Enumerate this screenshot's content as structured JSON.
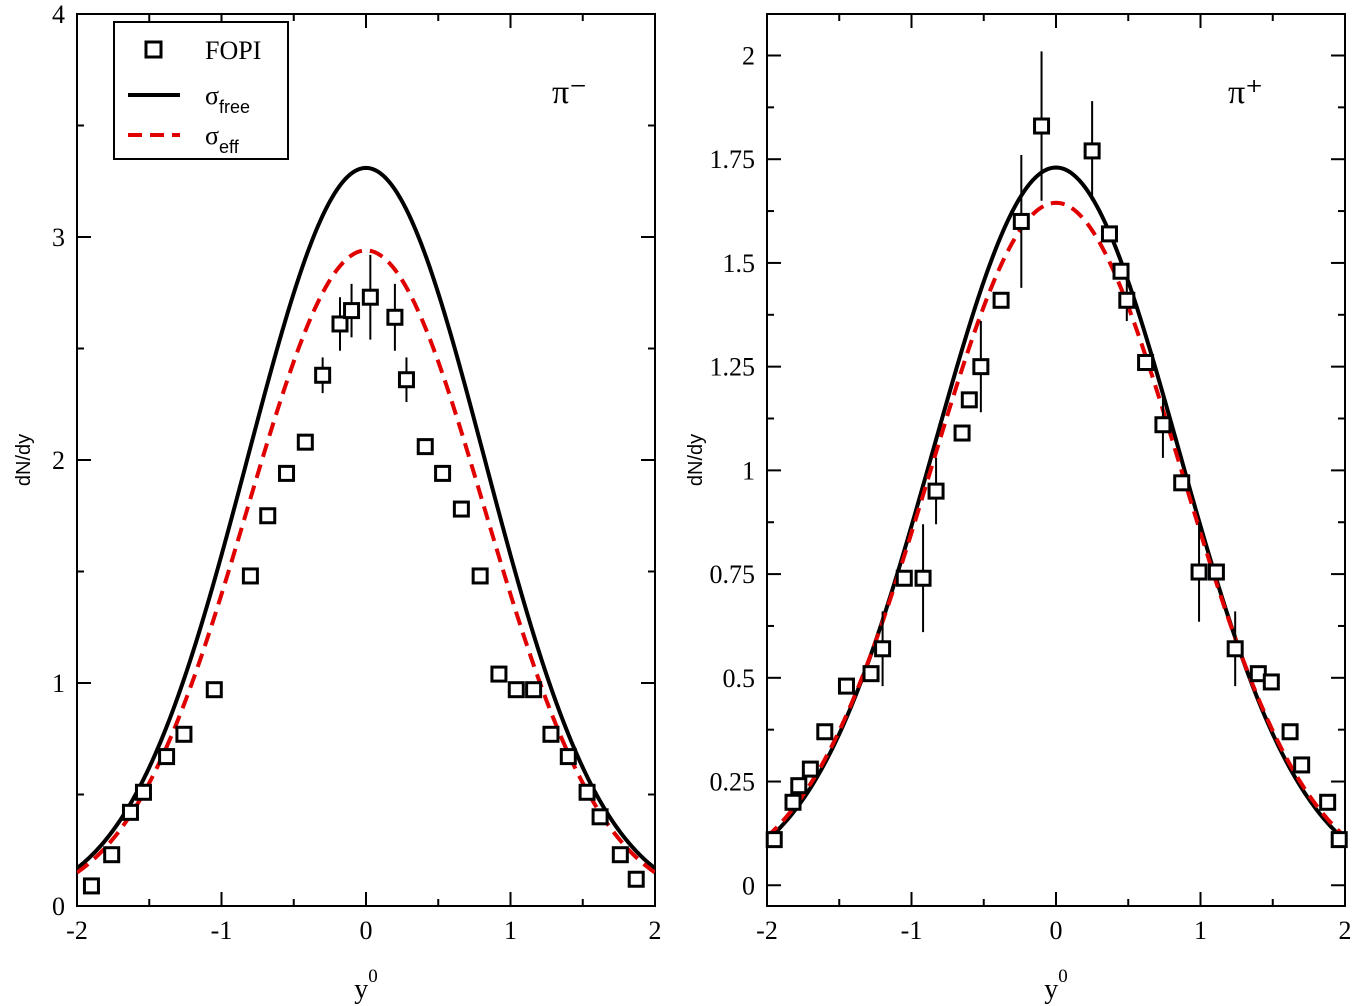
{
  "chart_data": [
    {
      "type": "scatter",
      "panel": "left",
      "label": "π⁻",
      "xlabel": "y",
      "xlabel_sup": "0",
      "ylabel": "dN/dy",
      "xlim": [
        -2,
        2
      ],
      "ylim": [
        0,
        4
      ],
      "xticks": [
        -2,
        -1,
        0,
        1,
        2
      ],
      "xtick_labels": [
        "-2",
        "-1",
        "0",
        "1",
        "2"
      ],
      "yticks": [
        0,
        1,
        2,
        3,
        4
      ],
      "ytick_labels": [
        "0",
        "1",
        "2",
        "3",
        "4"
      ],
      "grid": false,
      "legend": {
        "position": "top-left",
        "entries": [
          {
            "label": "FOPI",
            "sub": "",
            "marker": "square"
          },
          {
            "label": "σ",
            "sub": "free",
            "line": "solid",
            "color": "#000000"
          },
          {
            "label": "σ",
            "sub": "eff",
            "line": "dashed",
            "color": "#e00000"
          }
        ]
      },
      "curves": [
        {
          "name": "σfree",
          "style": "solid",
          "color": "#000000",
          "amplitude": 3.31,
          "width": 0.82,
          "x_range": [
            -2,
            2
          ]
        },
        {
          "name": "σeff",
          "style": "dashed",
          "color": "#e00000",
          "amplitude": 2.94,
          "width": 0.82,
          "x_range": [
            -2,
            2
          ]
        }
      ],
      "series": [
        {
          "name": "FOPI",
          "marker": "square",
          "points": [
            {
              "x": -1.9,
              "y": 0.09
            },
            {
              "x": -1.76,
              "y": 0.23
            },
            {
              "x": -1.63,
              "y": 0.42
            },
            {
              "x": -1.54,
              "y": 0.51
            },
            {
              "x": -1.38,
              "y": 0.67
            },
            {
              "x": -1.26,
              "y": 0.77
            },
            {
              "x": -1.05,
              "y": 0.97
            },
            {
              "x": -0.8,
              "y": 1.48
            },
            {
              "x": -0.68,
              "y": 1.75
            },
            {
              "x": -0.55,
              "y": 1.94
            },
            {
              "x": -0.42,
              "y": 2.08
            },
            {
              "x": -0.3,
              "y": 2.38,
              "err": 0.08
            },
            {
              "x": -0.18,
              "y": 2.61,
              "err": 0.12
            },
            {
              "x": -0.1,
              "y": 2.67,
              "err": 0.12
            },
            {
              "x": 0.03,
              "y": 2.73,
              "err": 0.19
            },
            {
              "x": 0.2,
              "y": 2.64,
              "err": 0.15
            },
            {
              "x": 0.28,
              "y": 2.36,
              "err": 0.1
            },
            {
              "x": 0.41,
              "y": 2.06
            },
            {
              "x": 0.53,
              "y": 1.94
            },
            {
              "x": 0.66,
              "y": 1.78
            },
            {
              "x": 0.79,
              "y": 1.48
            },
            {
              "x": 0.92,
              "y": 1.04
            },
            {
              "x": 1.04,
              "y": 0.97
            },
            {
              "x": 1.16,
              "y": 0.97
            },
            {
              "x": 1.28,
              "y": 0.77
            },
            {
              "x": 1.4,
              "y": 0.67
            },
            {
              "x": 1.53,
              "y": 0.51
            },
            {
              "x": 1.62,
              "y": 0.4
            },
            {
              "x": 1.76,
              "y": 0.23
            },
            {
              "x": 1.87,
              "y": 0.12
            }
          ]
        }
      ]
    },
    {
      "type": "scatter",
      "panel": "right",
      "label": "π⁺",
      "xlabel": "y",
      "xlabel_sup": "0",
      "ylabel": "dN/dy",
      "xlim": [
        -2,
        2
      ],
      "ylim": [
        -0.05,
        2.1
      ],
      "xticks": [
        -2,
        -1,
        0,
        1,
        2
      ],
      "xtick_labels": [
        "-2",
        "-1",
        "0",
        "1",
        "2"
      ],
      "yticks": [
        0,
        0.25,
        0.5,
        0.75,
        1,
        1.25,
        1.5,
        1.75,
        2
      ],
      "ytick_labels": [
        "0",
        "0.25",
        "0.5",
        "0.75",
        "1",
        "1.25",
        "1.5",
        "1.75",
        "2"
      ],
      "grid": false,
      "curves": [
        {
          "name": "σfree",
          "style": "solid",
          "color": "#000000",
          "amplitude": 1.73,
          "width": 0.85,
          "x_range": [
            -2,
            2
          ]
        },
        {
          "name": "σeff",
          "style": "dashed",
          "color": "#e00000",
          "amplitude": 1.645,
          "width": 0.87,
          "x_range": [
            -2,
            2
          ]
        }
      ],
      "series": [
        {
          "name": "FOPI",
          "marker": "square",
          "points": [
            {
              "x": -1.95,
              "y": 0.11
            },
            {
              "x": -1.82,
              "y": 0.2
            },
            {
              "x": -1.78,
              "y": 0.24
            },
            {
              "x": -1.7,
              "y": 0.28
            },
            {
              "x": -1.6,
              "y": 0.37
            },
            {
              "x": -1.45,
              "y": 0.48
            },
            {
              "x": -1.28,
              "y": 0.51
            },
            {
              "x": -1.2,
              "y": 0.57,
              "err": 0.09
            },
            {
              "x": -1.05,
              "y": 0.74
            },
            {
              "x": -0.92,
              "y": 0.74,
              "err": 0.13
            },
            {
              "x": -0.83,
              "y": 0.95,
              "err": 0.08
            },
            {
              "x": -0.65,
              "y": 1.09
            },
            {
              "x": -0.6,
              "y": 1.17
            },
            {
              "x": -0.52,
              "y": 1.25,
              "err": 0.11
            },
            {
              "x": -0.38,
              "y": 1.41
            },
            {
              "x": -0.24,
              "y": 1.6,
              "err": 0.16
            },
            {
              "x": -0.1,
              "y": 1.83,
              "err": 0.18
            },
            {
              "x": 0.25,
              "y": 1.77,
              "err": 0.12
            },
            {
              "x": 0.37,
              "y": 1.57
            },
            {
              "x": 0.45,
              "y": 1.48
            },
            {
              "x": 0.49,
              "y": 1.41,
              "err": 0.05
            },
            {
              "x": 0.62,
              "y": 1.26
            },
            {
              "x": 0.74,
              "y": 1.11,
              "err": 0.08
            },
            {
              "x": 0.87,
              "y": 0.97
            },
            {
              "x": 0.99,
              "y": 0.755,
              "err": 0.12
            },
            {
              "x": 1.11,
              "y": 0.755
            },
            {
              "x": 1.24,
              "y": 0.57,
              "err": 0.09
            },
            {
              "x": 1.4,
              "y": 0.51
            },
            {
              "x": 1.49,
              "y": 0.49
            },
            {
              "x": 1.62,
              "y": 0.37
            },
            {
              "x": 1.7,
              "y": 0.29
            },
            {
              "x": 1.88,
              "y": 0.2
            },
            {
              "x": 1.96,
              "y": 0.11
            }
          ]
        }
      ]
    }
  ]
}
